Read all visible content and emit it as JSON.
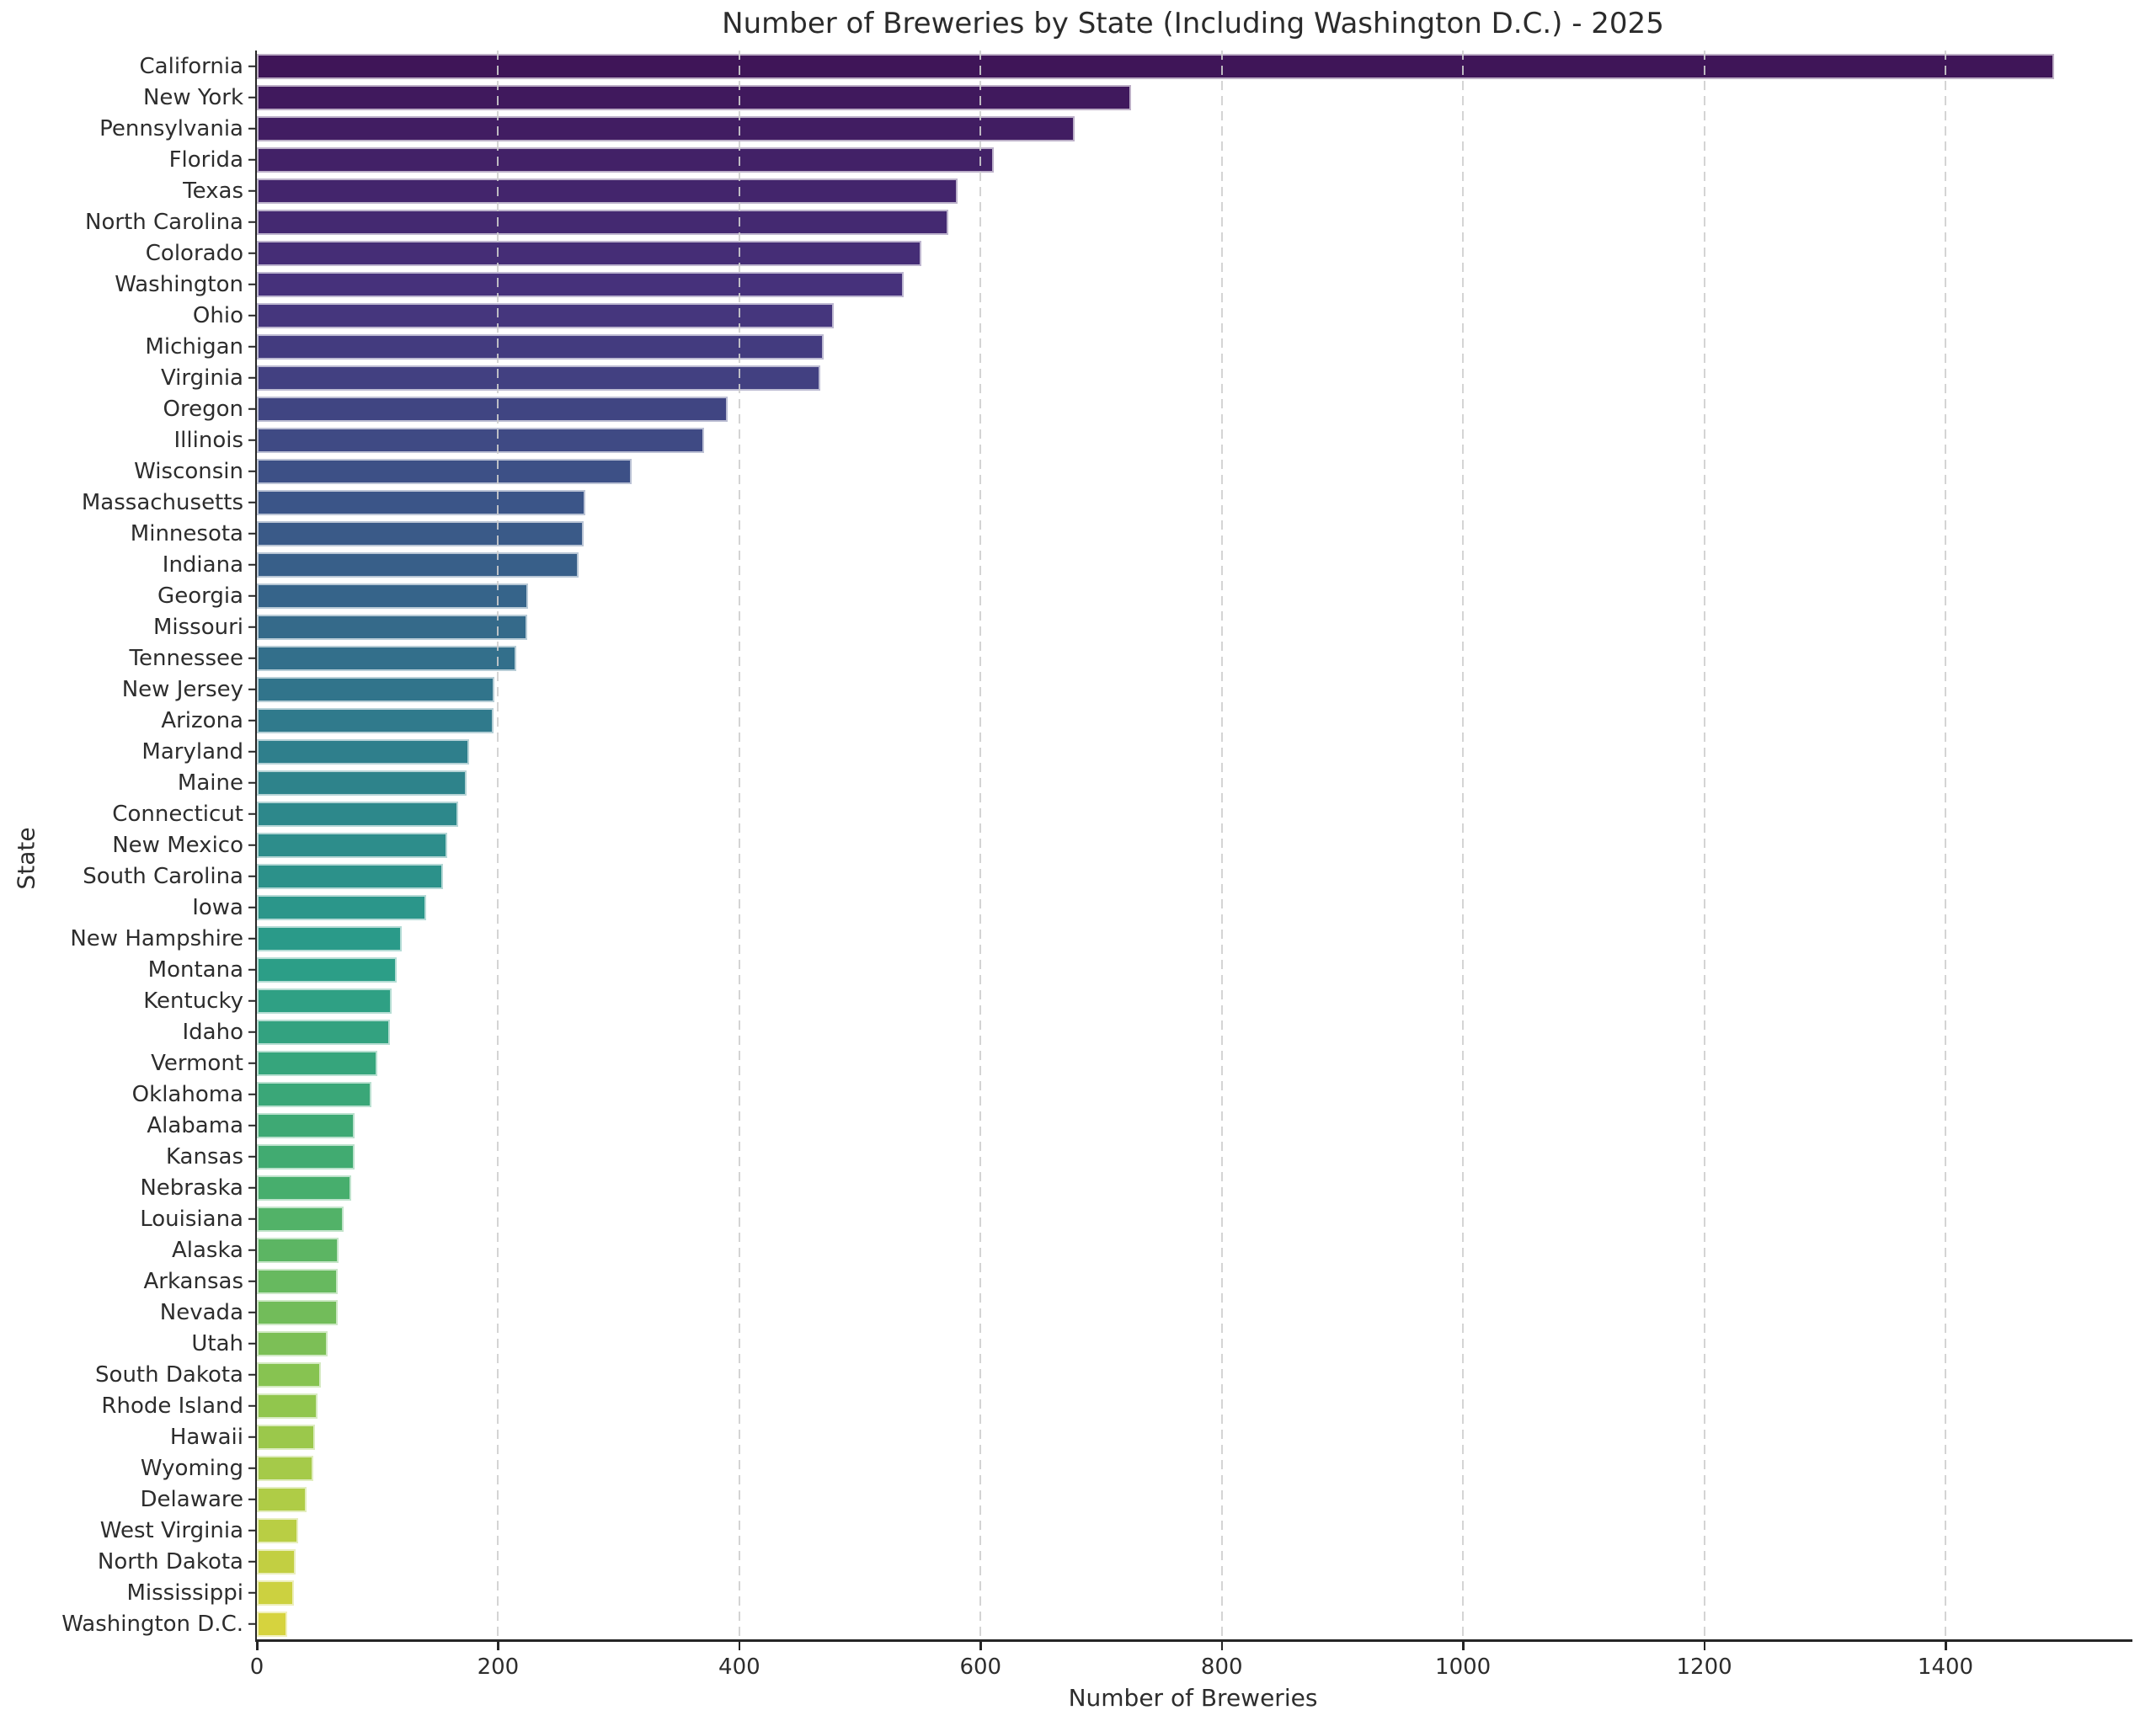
{
  "title": "Number of Breweries by State (Including Washington D.C.) - 2025",
  "colors": {
    "palette_name": "viridis-desaturated",
    "palette_stops": [
      "#3f1558",
      "#46327c",
      "#3b5688",
      "#2f7c8c",
      "#2a9d89",
      "#44ad6e",
      "#90c64d",
      "#d6d33e"
    ],
    "spine": "#262626",
    "grid": "#cecece",
    "text": "#2d2d2d"
  },
  "chart_data": {
    "type": "bar",
    "orientation": "horizontal",
    "title": "Number of Breweries by State (Including Washington D.C.) - 2025",
    "xlabel": "Number of Breweries",
    "ylabel": "State",
    "xlim": [
      0,
      1555
    ],
    "x_ticks": [
      0,
      200,
      400,
      600,
      800,
      1000,
      1200,
      1400
    ],
    "grid": "x-dashed",
    "legend": "none",
    "categories": [
      "California",
      "New York",
      "Pennsylvania",
      "Florida",
      "Texas",
      "North Carolina",
      "Colorado",
      "Washington",
      "Ohio",
      "Michigan",
      "Virginia",
      "Oregon",
      "Illinois",
      "Wisconsin",
      "Massachusetts",
      "Minnesota",
      "Indiana",
      "Georgia",
      "Missouri",
      "Tennessee",
      "New Jersey",
      "Arizona",
      "Maryland",
      "Maine",
      "Connecticut",
      "New Mexico",
      "South Carolina",
      "Iowa",
      "New Hampshire",
      "Montana",
      "Kentucky",
      "Idaho",
      "Vermont",
      "Oklahoma",
      "Alabama",
      "Kansas",
      "Nebraska",
      "Louisiana",
      "Alaska",
      "Arkansas",
      "Nevada",
      "Utah",
      "South Dakota",
      "Rhode Island",
      "Hawaii",
      "Wyoming",
      "Delaware",
      "West Virginia",
      "North Dakota",
      "Mississippi",
      "Washington D.C."
    ],
    "values": [
      1490,
      725,
      678,
      611,
      581,
      573,
      551,
      536,
      478,
      470,
      467,
      390,
      371,
      311,
      272,
      271,
      267,
      225,
      224,
      215,
      197,
      196,
      176,
      174,
      167,
      158,
      154,
      140,
      120,
      116,
      112,
      110,
      100,
      95,
      81,
      81,
      78,
      72,
      68,
      67,
      67,
      59,
      53,
      50,
      48,
      47,
      41,
      34,
      32,
      31,
      25
    ]
  }
}
